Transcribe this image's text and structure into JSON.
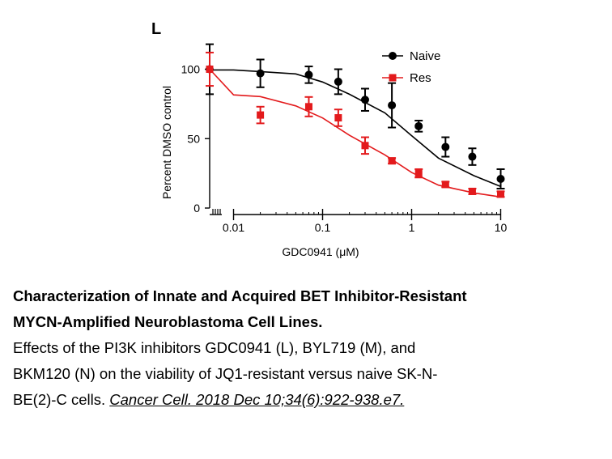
{
  "chart_data": {
    "type": "line",
    "panel_label": "L",
    "xlabel": "GDC0941 (μM)",
    "ylabel": "Percent DMSO control",
    "x_scale": "log",
    "x_tick_labels": [
      "0.01",
      "0.1",
      "1",
      "10"
    ],
    "x_ticks": [
      0.01,
      0.1,
      1,
      10
    ],
    "y_ticks": [
      0,
      50,
      100
    ],
    "y_tick_labels": [
      "0",
      "50",
      "100"
    ],
    "ylim": [
      0,
      115
    ],
    "x_break": true,
    "legend_position": "top-right",
    "series": [
      {
        "name": "Naive",
        "color": "#000000",
        "marker": "circle",
        "x": [
          0,
          0.02,
          0.07,
          0.15,
          0.3,
          0.6,
          1.2,
          2.4,
          4.8,
          10
        ],
        "y": [
          100,
          97,
          96,
          91,
          78,
          74,
          59,
          44,
          37,
          21
        ],
        "err": [
          18,
          10,
          6,
          9,
          8,
          16,
          4,
          7,
          6,
          7
        ],
        "fit_y": [
          99.5,
          99.5,
          98.3,
          96.6,
          90.8,
          82.0,
          68.6,
          52.1,
          36.0,
          23.3,
          15.5
        ]
      },
      {
        "name": "Res",
        "color": "#e31a1c",
        "marker": "square",
        "x": [
          0,
          0.02,
          0.07,
          0.15,
          0.3,
          0.6,
          1.2,
          2.4,
          4.8,
          10
        ],
        "y": [
          100,
          67,
          73,
          65,
          45,
          34,
          25,
          17,
          12,
          10
        ],
        "err": [
          12,
          6,
          7,
          6,
          6,
          2,
          3,
          2,
          2,
          2
        ],
        "fit_y": [
          100,
          81.5,
          80.3,
          73.6,
          64.9,
          52.4,
          38.3,
          25.6,
          16.5,
          10.9,
          8.0
        ]
      }
    ],
    "fit_x": [
      0,
      0.01,
      0.02,
      0.05,
      0.1,
      0.2,
      0.5,
      1,
      2,
      5,
      10
    ]
  },
  "caption": {
    "title_line1": "Characterization of Innate and Acquired BET Inhibitor-Resistant",
    "title_line2": "MYCN-Amplified Neuroblastoma Cell Lines.",
    "body_line1": "Effects of the PI3K inhibitors GDC0941 (L), BYL719 (M), and",
    "body_line2": "BKM120 (N) on the viability of JQ1-resistant versus naive SK-N-",
    "body_line3_prefix": "BE(2)-C cells. ",
    "citation": "Cancer Cell. 2018 Dec 10;34(6):922-938.e7."
  }
}
